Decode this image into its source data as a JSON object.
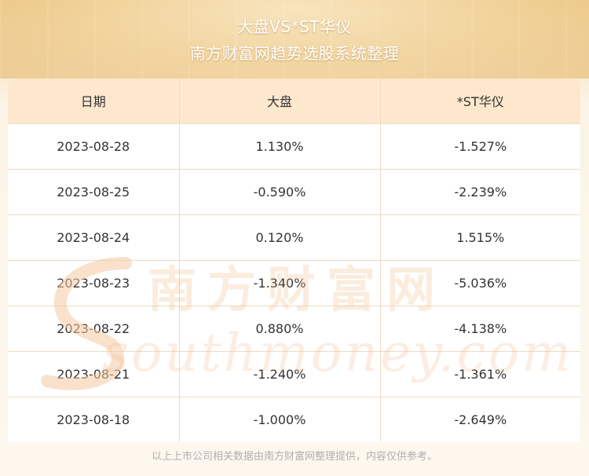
{
  "header": {
    "title": "大盘VS*ST华仪",
    "subtitle": "南方财富网趋势选股系统整理"
  },
  "table": {
    "columns": [
      "日期",
      "大盘",
      "*ST华仪"
    ],
    "rows": [
      [
        "2023-08-28",
        "1.130%",
        "-1.527%"
      ],
      [
        "2023-08-25",
        "-0.590%",
        "-2.239%"
      ],
      [
        "2023-08-24",
        "0.120%",
        "1.515%"
      ],
      [
        "2023-08-23",
        "-1.340%",
        "-5.036%"
      ],
      [
        "2023-08-22",
        "0.880%",
        "-4.138%"
      ],
      [
        "2023-08-21",
        "-1.240%",
        "-1.361%"
      ],
      [
        "2023-08-18",
        "-1.000%",
        "-2.649%"
      ]
    ]
  },
  "watermark": {
    "cn": "南方财富网",
    "en": "southmoney.com"
  },
  "footer": {
    "disclaimer": "以上上市公司相关数据由南方财富网整理提供，内容仅供参考。"
  },
  "colors": {
    "header_bg": "#fde8cd",
    "grid": "#f0dcc0",
    "watermark": "#f2b98a"
  }
}
